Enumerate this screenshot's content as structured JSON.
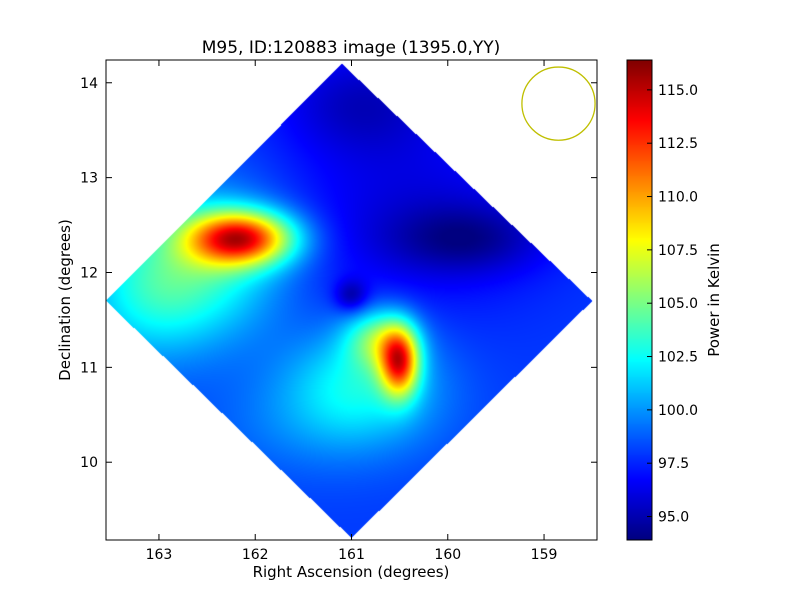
{
  "chart_data": {
    "type": "heatmap",
    "title": "M95, ID:120883 image (1395.0,YY)",
    "xlabel": "Right Ascension (degrees)",
    "ylabel": "Declination (degrees)",
    "colorbar_label": "Power in Kelvin",
    "colormap": "jet",
    "x_inverted": true,
    "xlim": [
      163.55,
      158.45
    ],
    "ylim": [
      9.18,
      14.24
    ],
    "x_ticks": [
      163,
      162,
      161,
      160,
      159
    ],
    "x_tick_labels": [
      "163",
      "162",
      "161",
      "160",
      "159"
    ],
    "y_ticks": [
      10,
      11,
      12,
      13,
      14
    ],
    "y_tick_labels": [
      "10",
      "11",
      "12",
      "13",
      "14"
    ],
    "clim": [
      93.9,
      116.4
    ],
    "colorbar_ticks": [
      95.0,
      97.5,
      100.0,
      102.5,
      105.0,
      107.5,
      110.0,
      112.5,
      115.0
    ],
    "colorbar_tick_labels": [
      "95.0",
      "97.5",
      "100.0",
      "102.5",
      "105.0",
      "107.5",
      "110.0",
      "112.5",
      "115.0"
    ],
    "field_corners_radec": [
      [
        161.1,
        14.2
      ],
      [
        158.5,
        11.7
      ],
      [
        161.0,
        9.2
      ],
      [
        163.55,
        11.7
      ]
    ],
    "background_level": 98.0,
    "features": [
      {
        "ra": 162.15,
        "dec": 12.36,
        "sigma_ra": 0.38,
        "sigma_dec": 0.2,
        "amplitude": 14.0
      },
      {
        "ra": 162.55,
        "dec": 12.1,
        "sigma_ra": 0.6,
        "sigma_dec": 0.55,
        "amplitude": 5.0
      },
      {
        "ra": 163.15,
        "dec": 11.75,
        "sigma_ra": 0.5,
        "sigma_dec": 0.5,
        "amplitude": 3.0
      },
      {
        "ra": 160.5,
        "dec": 11.05,
        "sigma_ra": 0.14,
        "sigma_dec": 0.25,
        "amplitude": 12.0
      },
      {
        "ra": 160.7,
        "dec": 11.3,
        "sigma_ra": 0.25,
        "sigma_dec": 0.22,
        "amplitude": 6.0
      },
      {
        "ra": 160.9,
        "dec": 10.85,
        "sigma_ra": 0.55,
        "sigma_dec": 0.4,
        "amplitude": 4.0
      },
      {
        "ra": 161.3,
        "dec": 10.4,
        "sigma_ra": 0.8,
        "sigma_dec": 0.4,
        "amplitude": 1.5
      },
      {
        "ra": 160.3,
        "dec": 12.6,
        "sigma_ra": 1.0,
        "sigma_dec": 0.7,
        "amplitude": -2.0
      },
      {
        "ra": 159.8,
        "dec": 12.35,
        "sigma_ra": 0.55,
        "sigma_dec": 0.25,
        "amplitude": -2.5
      },
      {
        "ra": 160.9,
        "dec": 13.8,
        "sigma_ra": 0.6,
        "sigma_dec": 0.4,
        "amplitude": -2.5
      },
      {
        "ra": 161.0,
        "dec": 11.75,
        "sigma_ra": 0.12,
        "sigma_dec": 0.12,
        "amplitude": -3.0
      }
    ],
    "beam_circle": {
      "ra": 158.85,
      "dec": 13.78,
      "radius_deg": 0.38,
      "color": "#bfbf00"
    }
  }
}
